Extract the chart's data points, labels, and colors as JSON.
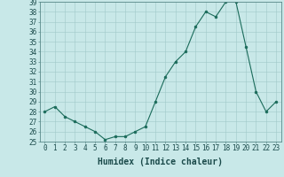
{
  "x": [
    0,
    1,
    2,
    3,
    4,
    5,
    6,
    7,
    8,
    9,
    10,
    11,
    12,
    13,
    14,
    15,
    16,
    17,
    18,
    19,
    20,
    21,
    22,
    23
  ],
  "y": [
    28,
    28.5,
    27.5,
    27,
    26.5,
    26,
    25.2,
    25.5,
    25.5,
    26,
    26.5,
    29,
    31.5,
    33,
    34,
    36.5,
    38,
    37.5,
    39,
    39,
    34.5,
    30,
    28,
    29
  ],
  "line_color": "#1a6b5a",
  "marker": "o",
  "marker_size": 2,
  "bg_color": "#c8e8e8",
  "grid_color": "#a0c8c8",
  "xlabel": "Humidex (Indice chaleur)",
  "ylim": [
    25,
    39
  ],
  "xlim": [
    -0.5,
    23.5
  ],
  "yticks": [
    25,
    26,
    27,
    28,
    29,
    30,
    31,
    32,
    33,
    34,
    35,
    36,
    37,
    38,
    39
  ],
  "xticks": [
    0,
    1,
    2,
    3,
    4,
    5,
    6,
    7,
    8,
    9,
    10,
    11,
    12,
    13,
    14,
    15,
    16,
    17,
    18,
    19,
    20,
    21,
    22,
    23
  ],
  "xlabel_fontsize": 7,
  "tick_fontsize": 5.5,
  "line_width": 0.8
}
